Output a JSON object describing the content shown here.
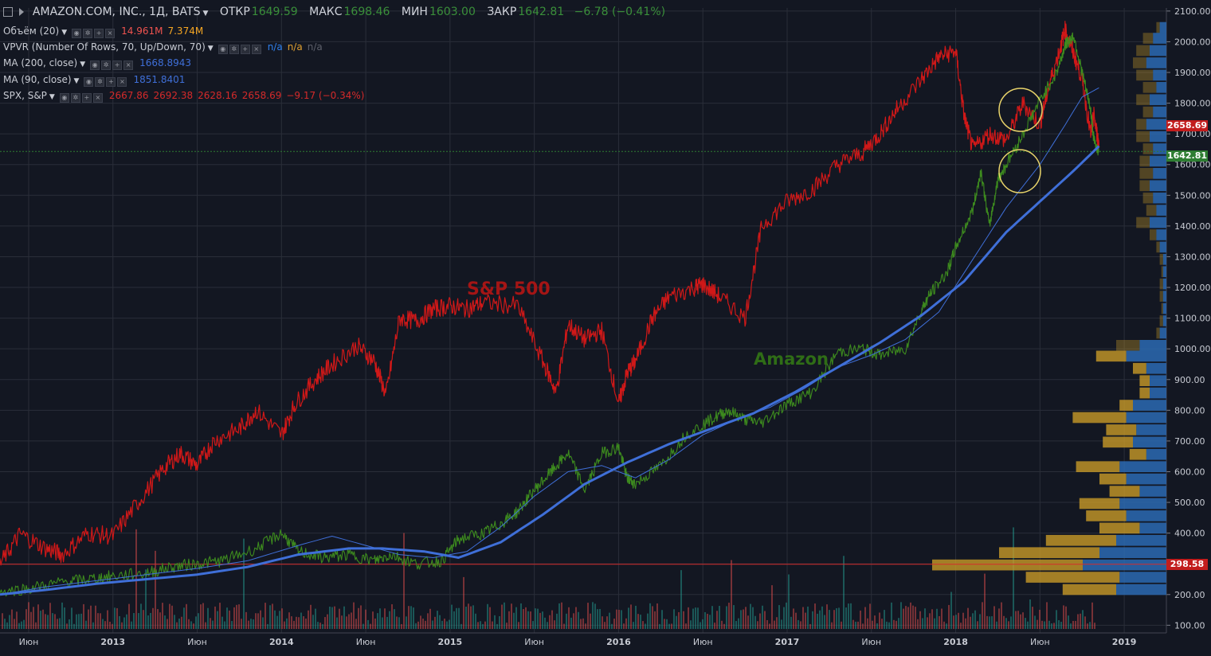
{
  "header": {
    "symbol": "AMAZON.COM, INC., 1Д, BATS",
    "open_label": "ОТКР",
    "open": "1649.59",
    "high_label": "МАКС",
    "high": "1698.46",
    "low_label": "МИН",
    "low": "1603.00",
    "close_label": "ЗАКР",
    "close": "1642.81",
    "change": "−6.78 (−0.41%)"
  },
  "legend": [
    {
      "name": "Объём (20)",
      "values": [
        "14.961M",
        "7.374M"
      ],
      "colors": [
        "#f0534f",
        "#f5a623"
      ]
    },
    {
      "name": "VPVR (Number Of Rows, 70, Up/Down, 70)",
      "values": [
        "n/a",
        "n/a",
        "n/a"
      ],
      "colors": [
        "#2f80ed",
        "#e0a030",
        "#5d606b"
      ]
    },
    {
      "name": "MA (200, close)",
      "values": [
        "1668.8943"
      ],
      "colors": [
        "#3f6fd8"
      ]
    },
    {
      "name": "MA (90, close)",
      "values": [
        "1851.8401"
      ],
      "colors": [
        "#3f6fd8"
      ]
    },
    {
      "name": "SPX, S&P",
      "values": [
        "2667.86",
        "2692.38",
        "2628.16",
        "2658.69",
        "−9.17 (−0.34%)"
      ],
      "colors": [
        "#d42a2a",
        "#d42a2a",
        "#d42a2a",
        "#d42a2a",
        "#d42a2a"
      ]
    }
  ],
  "annotations": {
    "sp500": "S&P 500",
    "amazon": "Amazon"
  },
  "price_tags": {
    "spx_last": "2658.69",
    "amzn_last": "1642.81",
    "level": "298.58"
  },
  "colors": {
    "background": "#131722",
    "grid": "#2a2e39",
    "spx_line": "#d01818",
    "amzn_line": "#3d8b1e",
    "ma200": "#3f6fd8",
    "ma90": "#3f6fd8",
    "vpvr_up": "#2b6ab3",
    "vpvr_down": "#c89a28",
    "spx_tag": "#c21d1d",
    "amzn_tag": "#2e7d32"
  },
  "chart_data": {
    "type": "line",
    "y_axis": {
      "ticks": [
        100,
        200,
        300,
        400,
        500,
        600,
        700,
        800,
        900,
        1000,
        1100,
        1200,
        1300,
        1400,
        1500,
        1600,
        1700,
        1800,
        1900,
        2000,
        2100
      ],
      "tick_labels": [
        "100.00",
        "200.00",
        "300.00",
        "400.00",
        "500.00",
        "600.00",
        "700.00",
        "800.00",
        "900.00",
        "1000.00",
        "1100.00",
        "1200.00",
        "1300.00",
        "1400.00",
        "1500.00",
        "1600.00",
        "1700.00",
        "1800.00",
        "1900.00",
        "2000.00",
        "2100.00"
      ],
      "range": [
        75,
        2110
      ]
    },
    "x_axis": {
      "range": [
        2012.33,
        2019.25
      ],
      "ticks": [
        2012.5,
        2013,
        2013.5,
        2014,
        2014.5,
        2015,
        2015.5,
        2016,
        2016.5,
        2017,
        2017.5,
        2018,
        2018.5,
        2019
      ],
      "tick_labels": [
        "Июн",
        "2013",
        "Июн",
        "2014",
        "Июн",
        "2015",
        "Июн",
        "2016",
        "Июн",
        "2017",
        "Июн",
        "2018",
        "Июн",
        "2019"
      ]
    },
    "series": [
      {
        "name": "SPX, S&P",
        "x": [
          2012.33,
          2012.45,
          2012.6,
          2012.7,
          2012.85,
          2013.0,
          2013.15,
          2013.3,
          2013.4,
          2013.5,
          2013.6,
          2013.75,
          2013.85,
          2014.0,
          2014.08,
          2014.2,
          2014.3,
          2014.45,
          2014.55,
          2014.62,
          2014.7,
          2014.8,
          2014.9,
          2015.0,
          2015.1,
          2015.2,
          2015.4,
          2015.55,
          2015.63,
          2015.7,
          2015.8,
          2015.9,
          2016.0,
          2016.05,
          2016.1,
          2016.2,
          2016.3,
          2016.45,
          2016.5,
          2016.6,
          2016.75,
          2016.85,
          2017.0,
          2017.15,
          2017.3,
          2017.45,
          2017.55,
          2017.65,
          2017.8,
          2017.9,
          2018.0,
          2018.05,
          2018.1,
          2018.2,
          2018.3,
          2018.4,
          2018.5,
          2018.55,
          2018.62,
          2018.65,
          2018.7,
          2018.75,
          2018.8,
          2018.82,
          2018.85
        ],
        "values": [
          300,
          398,
          350,
          330,
          400,
          390,
          500,
          610,
          660,
          620,
          700,
          740,
          800,
          720,
          820,
          900,
          950,
          1010,
          960,
          850,
          1100,
          1090,
          1130,
          1140,
          1130,
          1150,
          1140,
          960,
          860,
          1080,
          1030,
          1060,
          820,
          920,
          960,
          1100,
          1170,
          1200,
          1210,
          1170,
          1100,
          1400,
          1480,
          1520,
          1600,
          1640,
          1700,
          1780,
          1880,
          1950,
          1970,
          1760,
          1650,
          1700,
          1680,
          1800,
          1730,
          1850,
          1980,
          2040,
          1960,
          1880,
          1700,
          1760,
          1660
        ],
        "color": "#d01818"
      },
      {
        "name": "Amazon",
        "x": [
          2012.33,
          2012.5,
          2012.7,
          2012.85,
          2013.0,
          2013.2,
          2013.35,
          2013.5,
          2013.65,
          2013.85,
          2014.0,
          2014.1,
          2014.25,
          2014.4,
          2014.55,
          2014.65,
          2014.8,
          2014.95,
          2015.05,
          2015.2,
          2015.3,
          2015.4,
          2015.5,
          2015.6,
          2015.7,
          2015.8,
          2015.9,
          2016.0,
          2016.05,
          2016.1,
          2016.25,
          2016.4,
          2016.55,
          2016.65,
          2016.75,
          2016.85,
          2017.0,
          2017.15,
          2017.3,
          2017.45,
          2017.55,
          2017.7,
          2017.8,
          2017.85,
          2017.95,
          2018.0,
          2018.1,
          2018.15,
          2018.2,
          2018.25,
          2018.3,
          2018.4,
          2018.5,
          2018.6,
          2018.65,
          2018.7,
          2018.75,
          2018.8,
          2018.82,
          2018.85
        ],
        "values": [
          210,
          220,
          240,
          250,
          260,
          270,
          290,
          300,
          310,
          350,
          400,
          340,
          320,
          330,
          310,
          330,
          300,
          310,
          380,
          400,
          430,
          470,
          540,
          600,
          660,
          540,
          660,
          680,
          580,
          560,
          620,
          720,
          770,
          800,
          770,
          760,
          820,
          860,
          990,
          1000,
          980,
          1000,
          1130,
          1180,
          1250,
          1330,
          1450,
          1580,
          1400,
          1550,
          1600,
          1700,
          1810,
          1900,
          1990,
          2020,
          1900,
          1780,
          1680,
          1640
        ],
        "color": "#3d8b1e"
      },
      {
        "name": "MA (200, close)",
        "x": [
          2012.33,
          2012.6,
          2012.9,
          2013.2,
          2013.5,
          2013.8,
          2014.1,
          2014.4,
          2014.6,
          2014.85,
          2015.05,
          2015.3,
          2015.55,
          2015.8,
          2016.05,
          2016.3,
          2016.55,
          2016.8,
          2017.05,
          2017.3,
          2017.55,
          2017.8,
          2018.05,
          2018.3,
          2018.5,
          2018.7,
          2018.85
        ],
        "values": [
          200,
          215,
          235,
          250,
          265,
          290,
          330,
          350,
          350,
          340,
          320,
          370,
          460,
          560,
          630,
          690,
          740,
          790,
          860,
          940,
          1020,
          1110,
          1220,
          1380,
          1480,
          1580,
          1660
        ],
        "color": "#3f6fd8"
      },
      {
        "name": "MA (90, close)",
        "x": [
          2012.33,
          2012.6,
          2012.9,
          2013.2,
          2013.5,
          2013.8,
          2014.1,
          2014.3,
          2014.5,
          2014.7,
          2014.9,
          2015.1,
          2015.3,
          2015.5,
          2015.7,
          2015.9,
          2016.1,
          2016.3,
          2016.5,
          2016.7,
          2016.9,
          2017.1,
          2017.3,
          2017.5,
          2017.7,
          2017.9,
          2018.1,
          2018.3,
          2018.5,
          2018.65,
          2018.75,
          2018.85
        ],
        "values": [
          200,
          225,
          245,
          265,
          285,
          310,
          360,
          390,
          360,
          330,
          320,
          340,
          420,
          520,
          600,
          620,
          580,
          640,
          720,
          770,
          810,
          870,
          940,
          980,
          1030,
          1120,
          1290,
          1460,
          1600,
          1730,
          1820,
          1850
        ],
        "color": "#3f6fd8"
      }
    ],
    "grid": true,
    "legend": "top-left"
  }
}
